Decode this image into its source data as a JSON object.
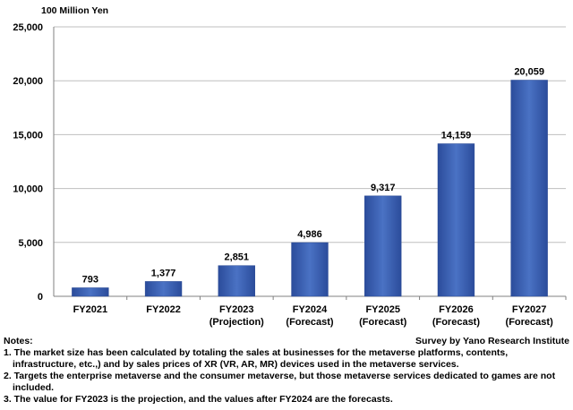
{
  "unit_label": "100 Million Yen",
  "source": "Survey by Yano Research Institute",
  "notes": {
    "title": "Notes:",
    "items": [
      "1. The market size has been calculated by totaling the sales at businesses for the metaverse platforms, contents, infrastructure, etc.,) and by sales prices of XR (VR, AR, MR) devices used in the metaverse services.",
      "2. Targets the enterprise metaverse and the consumer metaverse, but those metaverse services dedicated to games are not included.",
      "3. The value for FY2023 is the projection, and the values after FY2024 are the forecasts."
    ]
  },
  "colors": {
    "bar": "#3a5fb0",
    "bar_dark": "#2a4a94",
    "grid": "#bfbfbf",
    "axis": "#808080"
  },
  "chart_data": {
    "type": "bar",
    "ylabel": "100 Million Yen",
    "ylim": [
      0,
      25000
    ],
    "yticks": [
      0,
      5000,
      10000,
      15000,
      20000,
      25000
    ],
    "ytick_labels": [
      "0",
      "5,000",
      "10,000",
      "15,000",
      "20,000",
      "25,000"
    ],
    "grid": "horizontal",
    "categories": [
      [
        "FY2021"
      ],
      [
        "FY2022"
      ],
      [
        "FY2023",
        "(Projection)"
      ],
      [
        "FY2024",
        "(Forecast)"
      ],
      [
        "FY2025",
        "(Forecast)"
      ],
      [
        "FY2026",
        "(Forecast)"
      ],
      [
        "FY2027",
        "(Forecast)"
      ]
    ],
    "values": [
      793,
      1377,
      2851,
      4986,
      9317,
      14159,
      20059
    ],
    "data_labels": [
      "793",
      "1,377",
      "2,851",
      "4,986",
      "9,317",
      "14,159",
      "20,059"
    ]
  }
}
